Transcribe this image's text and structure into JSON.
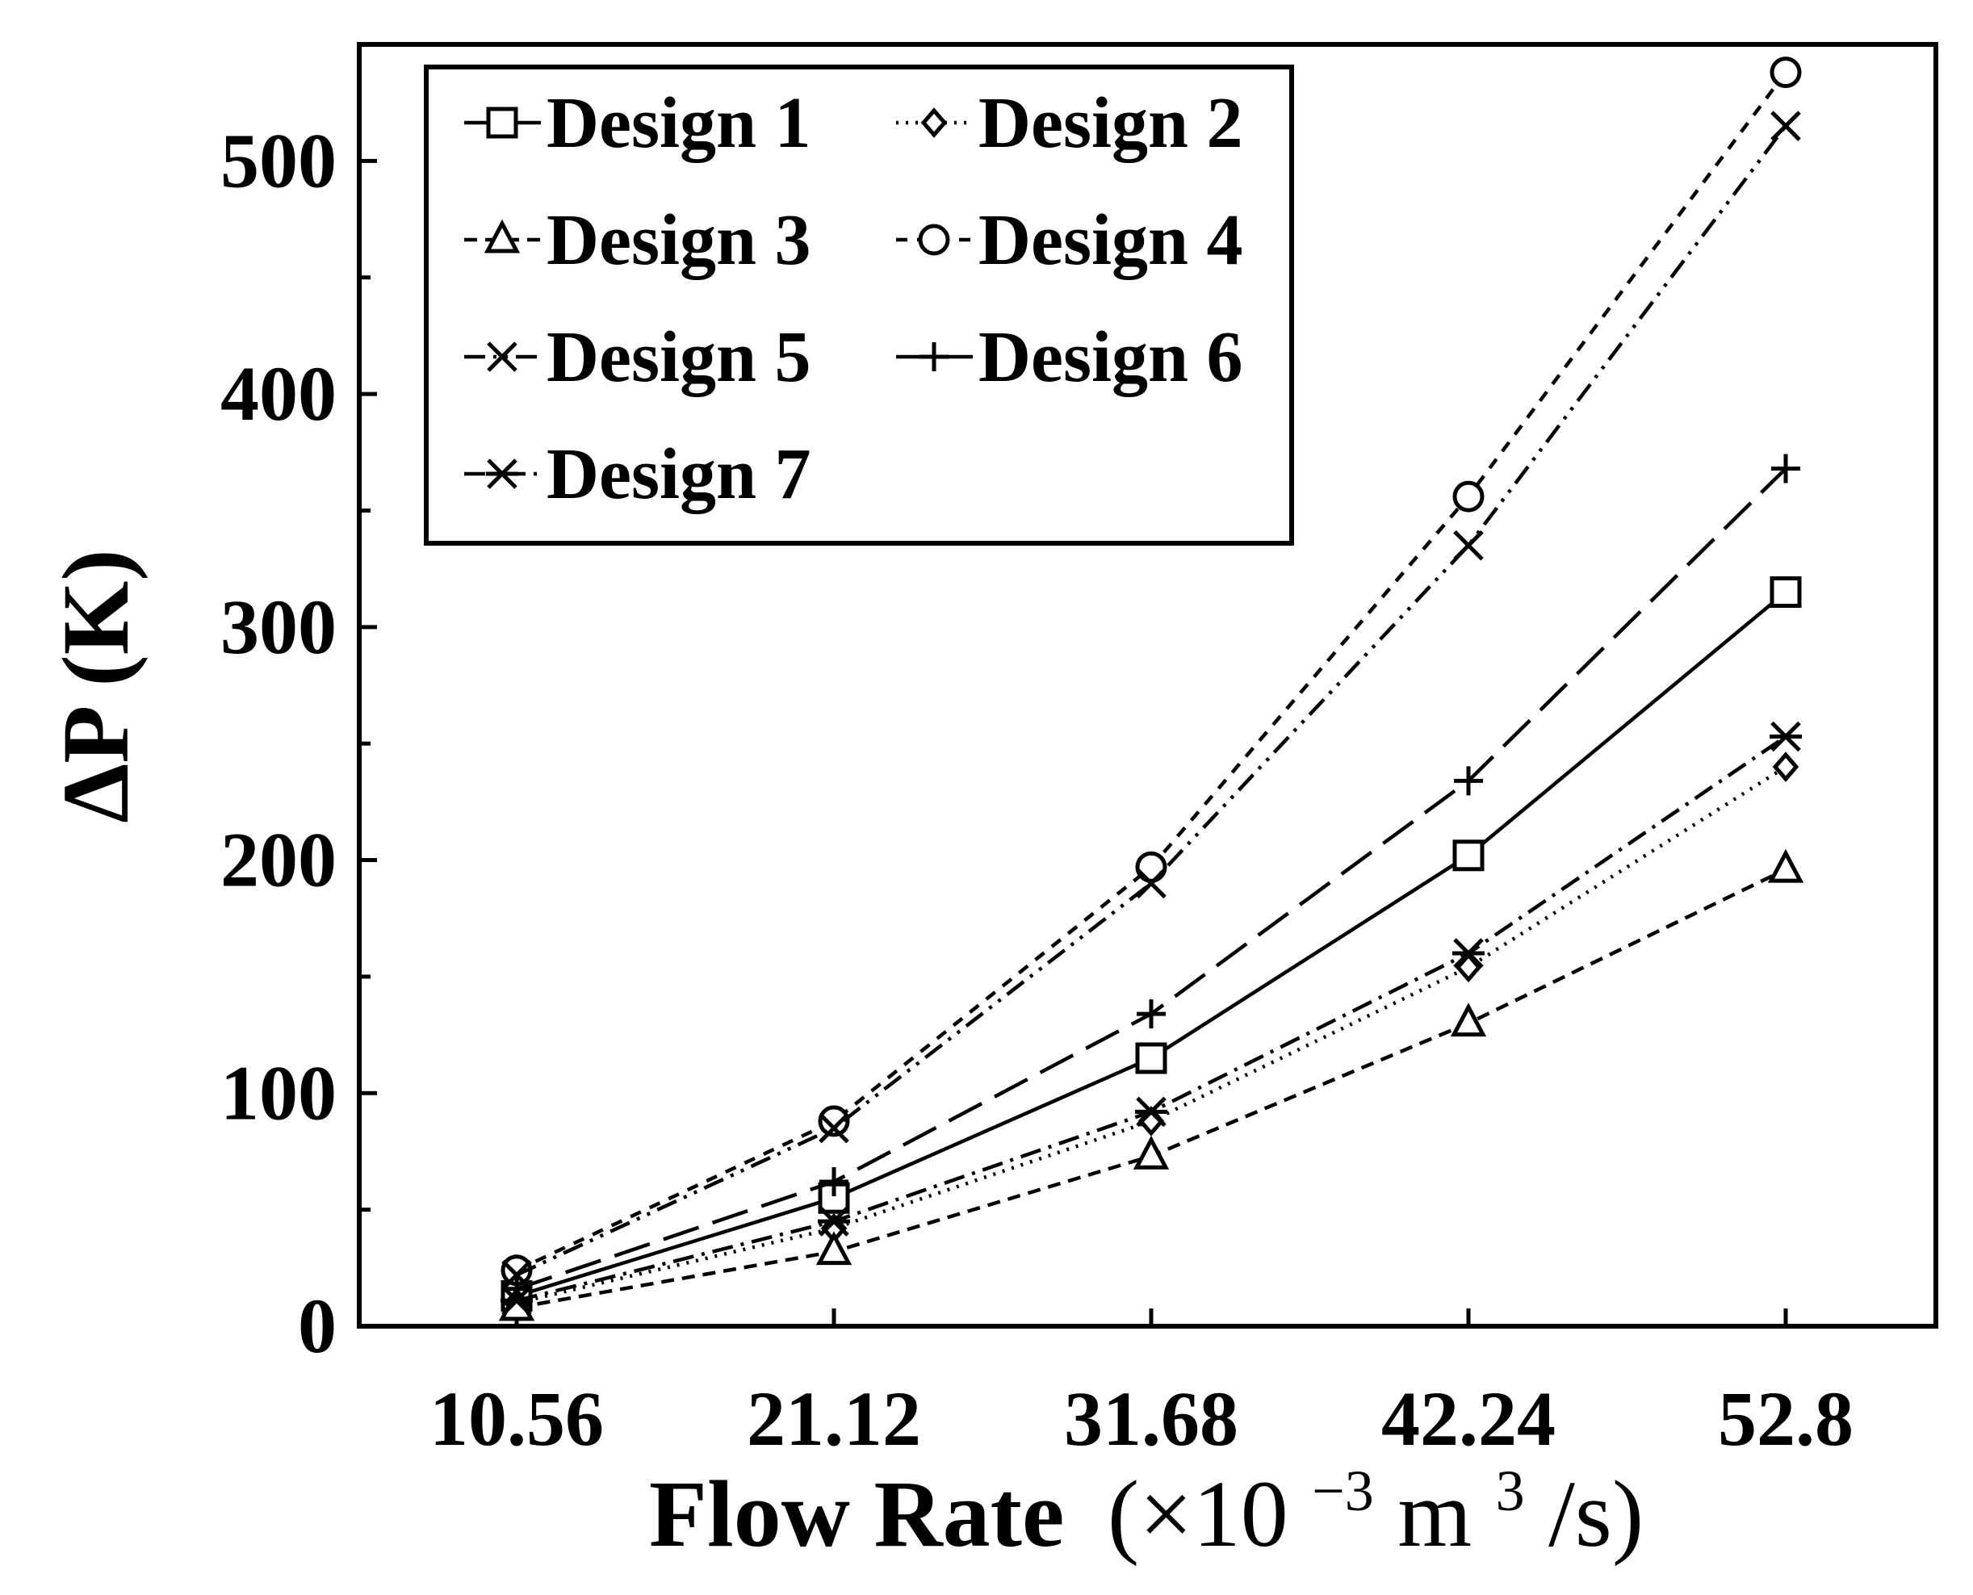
{
  "chart_data": {
    "type": "line",
    "title": "",
    "xlabel": {
      "main": "Flow Rate",
      "unit_open": "(×10",
      "unit_exp": "−3",
      "unit_mid": " m",
      "unit_exp2": "3",
      "unit_close": "/s)"
    },
    "ylabel": "ΔP (K)",
    "categories": [
      "10.56",
      "21.12",
      "31.68",
      "42.24",
      "52.8"
    ],
    "ylim": [
      0,
      550
    ],
    "yticks": [
      0,
      100,
      200,
      300,
      400,
      500
    ],
    "legend_position": "top-left",
    "series": [
      {
        "name": "Design 1",
        "marker": "square",
        "dash": "solid",
        "values": [
          13,
          55,
          115,
          202,
          315
        ]
      },
      {
        "name": "Design 2",
        "marker": "diamond",
        "dash": "dotted",
        "values": [
          10,
          42,
          88,
          154,
          240
        ]
      },
      {
        "name": "Design 3",
        "marker": "triangle",
        "dash": "dashed",
        "values": [
          8,
          32,
          73,
          130,
          196
        ]
      },
      {
        "name": "Design 4",
        "marker": "circle",
        "dash": "short-dash",
        "values": [
          24,
          88,
          197,
          356,
          538
        ]
      },
      {
        "name": "Design 5",
        "marker": "x",
        "dash": "dash-dot-dot",
        "values": [
          22,
          85,
          190,
          335,
          515
        ]
      },
      {
        "name": "Design 6",
        "marker": "plus",
        "dash": "long-dash",
        "values": [
          16,
          62,
          134,
          234,
          368
        ]
      },
      {
        "name": "Design 7",
        "marker": "asterisk",
        "dash": "dash-dot",
        "values": [
          11,
          45,
          92,
          160,
          253
        ]
      }
    ]
  }
}
